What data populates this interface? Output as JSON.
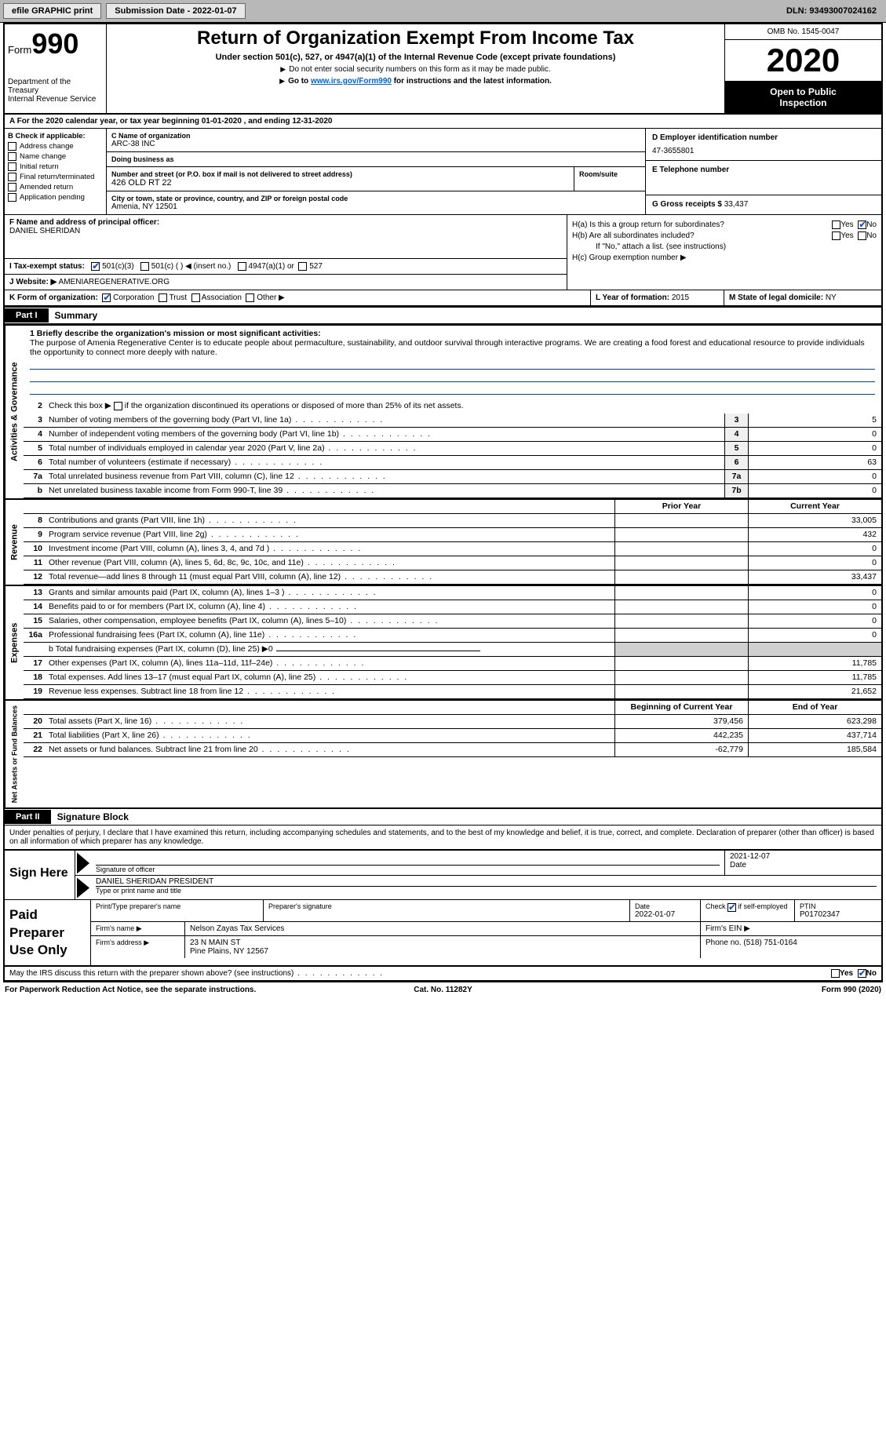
{
  "topbar": {
    "efile": "efile GRAPHIC print",
    "submission": "Submission Date - 2022-01-07",
    "dln": "DLN: 93493007024162"
  },
  "header": {
    "form_label": "Form",
    "form_num": "990",
    "dept1": "Department of the Treasury",
    "dept2": "Internal Revenue Service",
    "title": "Return of Organization Exempt From Income Tax",
    "sub": "Under section 501(c), 527, or 4947(a)(1) of the Internal Revenue Code (except private foundations)",
    "note1": "Do not enter social security numbers on this form as it may be made public.",
    "note2_pre": "Go to ",
    "note2_link": "www.irs.gov/Form990",
    "note2_post": " for instructions and the latest information.",
    "omb": "OMB No. 1545-0047",
    "year": "2020",
    "inspect1": "Open to Public",
    "inspect2": "Inspection"
  },
  "rowA": "A  For the 2020 calendar year, or tax year beginning 01-01-2020     , and ending 12-31-2020",
  "colB": {
    "hdr": "B Check if applicable:",
    "opts": [
      "Address change",
      "Name change",
      "Initial return",
      "Final return/terminated",
      "Amended return",
      "Application pending"
    ]
  },
  "colC": {
    "name_lbl": "C Name of organization",
    "name": "ARC-38 INC",
    "dba_lbl": "Doing business as",
    "dba": "",
    "addr_lbl": "Number and street (or P.O. box if mail is not delivered to street address)",
    "addr": "426 OLD RT 22",
    "room_lbl": "Room/suite",
    "city_lbl": "City or town, state or province, country, and ZIP or foreign postal code",
    "city": "Amenia, NY   12501"
  },
  "colD": {
    "ein_lbl": "D Employer identification number",
    "ein": "47-3655801",
    "tel_lbl": "E Telephone number",
    "tel": "",
    "gross_lbl": "G Gross receipts $",
    "gross": "33,437"
  },
  "rowF": {
    "lbl": "F  Name and address of principal officer:",
    "name": "DANIEL SHERIDAN"
  },
  "rowH": {
    "a": "H(a)  Is this a group return for subordinates?",
    "b": "H(b)  Are all subordinates included?",
    "bnote": "If \"No,\" attach a list. (see instructions)",
    "c": "H(c)  Group exemption number ▶",
    "yes": "Yes",
    "no": "No"
  },
  "rowI": {
    "lbl": "I   Tax-exempt status:",
    "o1": "501(c)(3)",
    "o2": "501(c) (   ) ◀ (insert no.)",
    "o3": "4947(a)(1) or",
    "o4": "527"
  },
  "rowJ": {
    "lbl": "J   Website: ▶",
    "val": "AMENIAREGENERATIVE.ORG"
  },
  "rowK": {
    "lbl": "K Form of organization:",
    "o1": "Corporation",
    "o2": "Trust",
    "o3": "Association",
    "o4": "Other ▶"
  },
  "rowL": {
    "lbl": "L Year of formation:",
    "val": "2015"
  },
  "rowM": {
    "lbl": "M State of legal domicile:",
    "val": "NY"
  },
  "part1": {
    "num": "Part I",
    "title": "Summary"
  },
  "mission": {
    "lbl": "1   Briefly describe the organization's mission or most significant activities:",
    "text": "The purpose of Amenia Regenerative Center is to educate people about permaculture, sustainability, and outdoor survival through interactive programs. We are creating a food forest and educational resource to provide individuals the opportunity to connect more deeply with nature."
  },
  "gov": {
    "l2": "Check this box ▶         if the organization discontinued its operations or disposed of more than 25% of its net assets.",
    "rows": [
      {
        "n": "3",
        "d": "Number of voting members of the governing body (Part VI, line 1a)",
        "b": "3",
        "v": "5"
      },
      {
        "n": "4",
        "d": "Number of independent voting members of the governing body (Part VI, line 1b)",
        "b": "4",
        "v": "0"
      },
      {
        "n": "5",
        "d": "Total number of individuals employed in calendar year 2020 (Part V, line 2a)",
        "b": "5",
        "v": "0"
      },
      {
        "n": "6",
        "d": "Total number of volunteers (estimate if necessary)",
        "b": "6",
        "v": "63"
      },
      {
        "n": "7a",
        "d": "Total unrelated business revenue from Part VIII, column (C), line 12",
        "b": "7a",
        "v": "0"
      },
      {
        "n": " b",
        "d": "Net unrelated business taxable income from Form 990-T, line 39",
        "b": "7b",
        "v": "0"
      }
    ]
  },
  "rev": {
    "hdr_prior": "Prior Year",
    "hdr_curr": "Current Year",
    "rows": [
      {
        "n": "8",
        "d": "Contributions and grants (Part VIII, line 1h)",
        "p": "",
        "c": "33,005"
      },
      {
        "n": "9",
        "d": "Program service revenue (Part VIII, line 2g)",
        "p": "",
        "c": "432"
      },
      {
        "n": "10",
        "d": "Investment income (Part VIII, column (A), lines 3, 4, and 7d )",
        "p": "",
        "c": "0"
      },
      {
        "n": "11",
        "d": "Other revenue (Part VIII, column (A), lines 5, 6d, 8c, 9c, 10c, and 11e)",
        "p": "",
        "c": "0"
      },
      {
        "n": "12",
        "d": "Total revenue—add lines 8 through 11 (must equal Part VIII, column (A), line 12)",
        "p": "",
        "c": "33,437"
      }
    ]
  },
  "exp": {
    "rows": [
      {
        "n": "13",
        "d": "Grants and similar amounts paid (Part IX, column (A), lines 1–3 )",
        "p": "",
        "c": "0"
      },
      {
        "n": "14",
        "d": "Benefits paid to or for members (Part IX, column (A), line 4)",
        "p": "",
        "c": "0"
      },
      {
        "n": "15",
        "d": "Salaries, other compensation, employee benefits (Part IX, column (A), lines 5–10)",
        "p": "",
        "c": "0"
      },
      {
        "n": "16a",
        "d": "Professional fundraising fees (Part IX, column (A), line 11e)",
        "p": "",
        "c": "0"
      }
    ],
    "b": "b   Total fundraising expenses (Part IX, column (D), line 25) ▶0",
    "rows2": [
      {
        "n": "17",
        "d": "Other expenses (Part IX, column (A), lines 11a–11d, 11f–24e)",
        "p": "",
        "c": "11,785"
      },
      {
        "n": "18",
        "d": "Total expenses. Add lines 13–17 (must equal Part IX, column (A), line 25)",
        "p": "",
        "c": "11,785"
      },
      {
        "n": "19",
        "d": "Revenue less expenses. Subtract line 18 from line 12",
        "p": "",
        "c": "21,652"
      }
    ]
  },
  "net": {
    "hdr_beg": "Beginning of Current Year",
    "hdr_end": "End of Year",
    "rows": [
      {
        "n": "20",
        "d": "Total assets (Part X, line 16)",
        "p": "379,456",
        "c": "623,298"
      },
      {
        "n": "21",
        "d": "Total liabilities (Part X, line 26)",
        "p": "442,235",
        "c": "437,714"
      },
      {
        "n": "22",
        "d": "Net assets or fund balances. Subtract line 21 from line 20",
        "p": "-62,779",
        "c": "185,584"
      }
    ]
  },
  "part2": {
    "num": "Part II",
    "title": "Signature Block"
  },
  "decl": "Under penalties of perjury, I declare that I have examined this return, including accompanying schedules and statements, and to the best of my knowledge and belief, it is true, correct, and complete. Declaration of preparer (other than officer) is based on all information of which preparer has any knowledge.",
  "sign": {
    "here": "Sign Here",
    "sig_lbl": "Signature of officer",
    "date": "2021-12-07",
    "date_lbl": "Date",
    "name": "DANIEL SHERIDAN  PRESIDENT",
    "name_lbl": "Type or print name and title"
  },
  "prep": {
    "title": "Paid Preparer Use Only",
    "r1": {
      "c1_lbl": "Print/Type preparer's name",
      "c1": "",
      "c2_lbl": "Preparer's signature",
      "c2": "",
      "c3_lbl": "Date",
      "c3": "2022-01-07",
      "c4_lbl": "Check          if self-employed",
      "c5_lbl": "PTIN",
      "c5": "P01702347"
    },
    "r2": {
      "lbl": "Firm's name      ▶",
      "val": "Nelson Zayas Tax Services",
      "ein_lbl": "Firm's EIN ▶",
      "ein": ""
    },
    "r3": {
      "lbl": "Firm's address ▶",
      "val1": "23 N MAIN ST",
      "val2": "Pine Plains, NY   12567",
      "ph_lbl": "Phone no.",
      "ph": "(518) 751-0164"
    }
  },
  "footer_q": "May the IRS discuss this return with the preparer shown above? (see instructions)",
  "bottom": {
    "l": "For Paperwork Reduction Act Notice, see the separate instructions.",
    "c": "Cat. No. 11282Y",
    "r": "Form 990 (2020)"
  },
  "vlabels": {
    "gov": "Activities & Governance",
    "rev": "Revenue",
    "exp": "Expenses",
    "net": "Net Assets or Fund Balances"
  }
}
